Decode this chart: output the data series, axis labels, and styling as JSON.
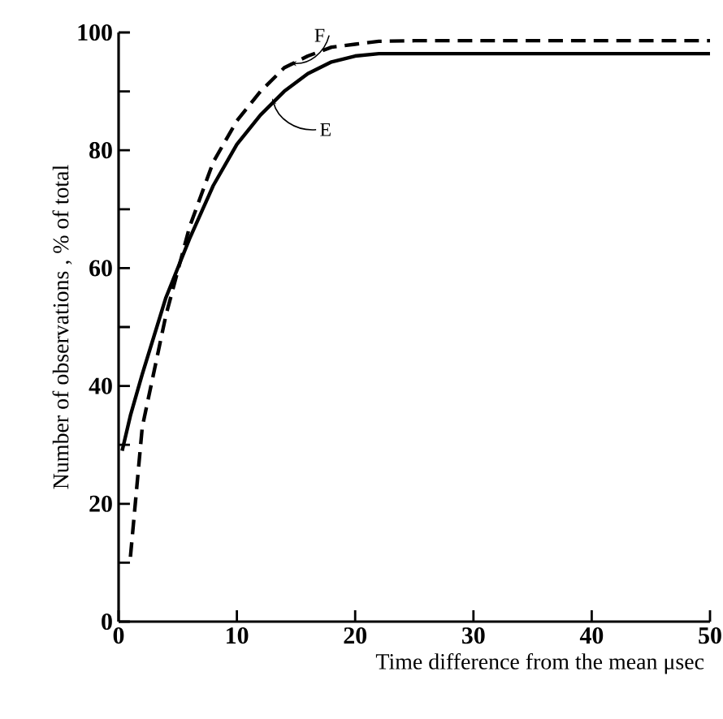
{
  "chart_data": {
    "type": "line",
    "xlabel": "Time difference from the mean μsec",
    "ylabel": "Number of observations , % of total",
    "xlim": [
      0,
      50
    ],
    "ylim": [
      0,
      100
    ],
    "xticks": [
      0,
      10,
      20,
      30,
      40,
      50
    ],
    "yticks": [
      0,
      {
        "value": 10,
        "label": null
      },
      20,
      {
        "value": 30,
        "label": null
      },
      40,
      {
        "value": 50,
        "label": null
      },
      60,
      {
        "value": 70,
        "label": null
      },
      80,
      {
        "value": 90,
        "label": null
      },
      100
    ],
    "series": [
      {
        "color": "#000000",
        "line_style": "solid",
        "x": [
          0.3,
          1,
          2,
          4,
          6,
          8,
          10,
          12,
          14,
          16,
          18,
          20,
          22,
          25,
          50
        ],
        "values": [
          29,
          35,
          42,
          55,
          65,
          74,
          81,
          86,
          90,
          93,
          95,
          96,
          96.4,
          96.4,
          96.4
        ]
      },
      {
        "color": "#000000",
        "line_style": "dashed",
        "x": [
          1,
          2,
          4,
          6,
          8,
          10,
          12,
          14,
          16,
          18,
          20,
          22,
          25,
          50
        ],
        "values": [
          11,
          33,
          52,
          67,
          78,
          85,
          90,
          94,
          96,
          97.5,
          98,
          98.5,
          98.6,
          98.6
        ]
      }
    ],
    "annotations": [
      {
        "text": "F",
        "x": 14.5,
        "y": 94
      },
      {
        "text": "E",
        "x": 13,
        "y": 88
      }
    ]
  }
}
